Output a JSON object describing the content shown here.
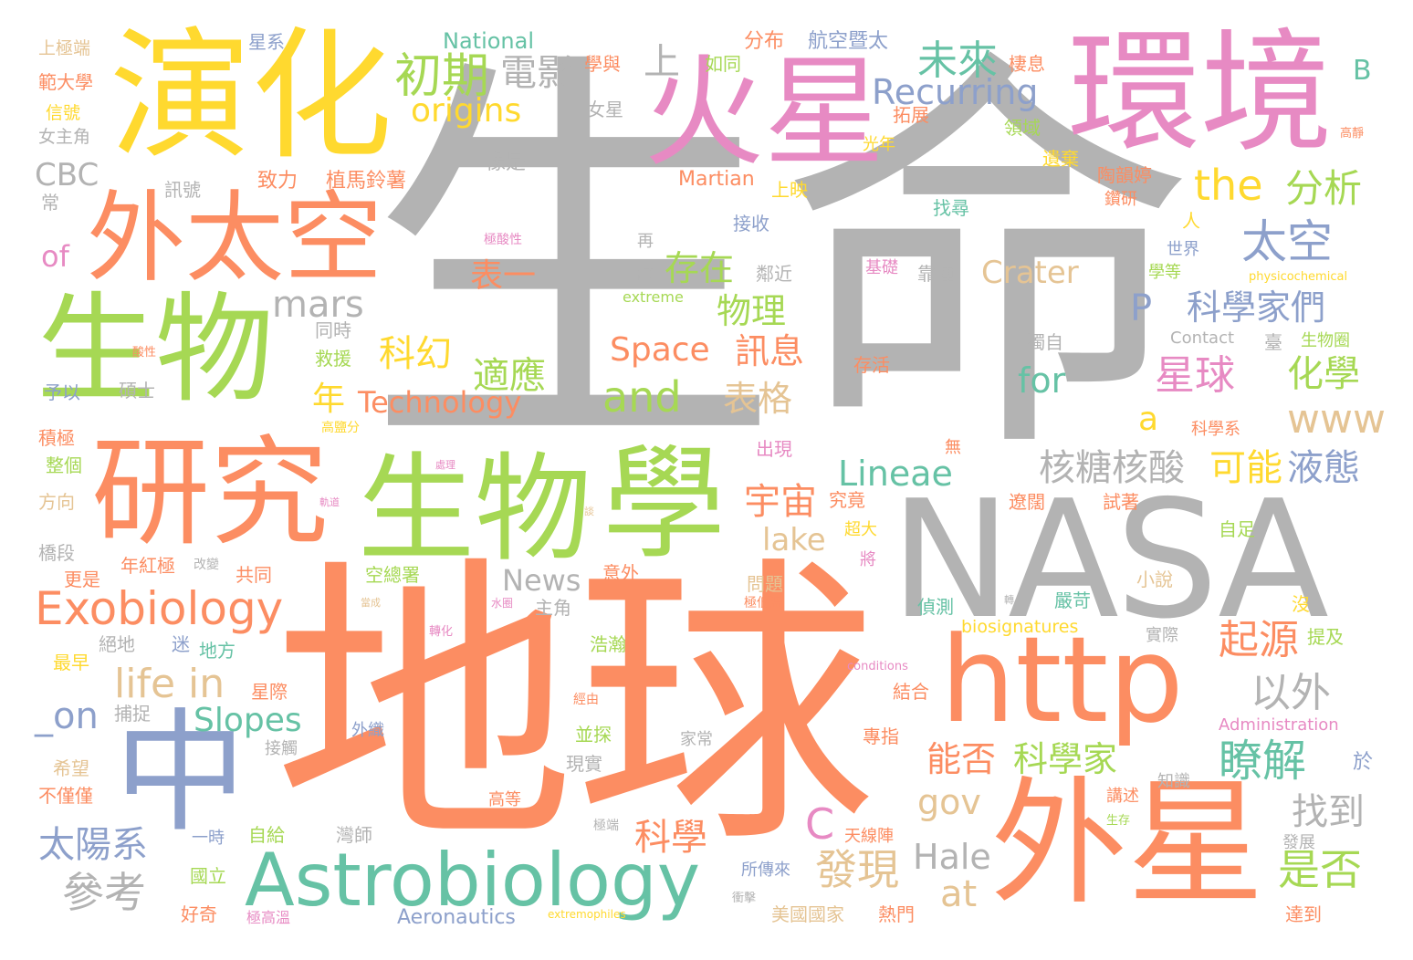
{
  "palette": {
    "gray": "#b3b3b3",
    "orange": "#fc8d62",
    "green": "#a6d854",
    "teal": "#66c2a5",
    "blue": "#8da0cb",
    "pink": "#e78ac3",
    "yellow": "#ffd92f",
    "tan": "#e5c494"
  },
  "words": [
    {
      "text": "生命",
      "color": "gray"
    },
    {
      "text": "地球",
      "color": "orange"
    },
    {
      "text": "NASA",
      "color": "gray"
    },
    {
      "text": "演化",
      "color": "yellow"
    },
    {
      "text": "火星",
      "color": "pink"
    },
    {
      "text": "環境",
      "color": "pink"
    },
    {
      "text": "外太空",
      "color": "orange"
    },
    {
      "text": "生物",
      "color": "green"
    },
    {
      "text": "研究",
      "color": "orange"
    },
    {
      "text": "生物",
      "color": "green"
    },
    {
      "text": "學",
      "color": "green"
    },
    {
      "text": "中",
      "color": "blue"
    },
    {
      "text": "http",
      "color": "orange"
    },
    {
      "text": "外星",
      "color": "orange"
    },
    {
      "text": "Astrobiology",
      "color": "teal"
    },
    {
      "text": "Exobiology",
      "color": "orange"
    },
    {
      "text": "life in",
      "color": "tan"
    },
    {
      "text": "初期",
      "color": "green"
    },
    {
      "text": "電影",
      "color": "gray"
    },
    {
      "text": "上",
      "color": "gray"
    },
    {
      "text": "origins",
      "color": "yellow"
    },
    {
      "text": "未來",
      "color": "teal"
    },
    {
      "text": "Recurring",
      "color": "blue"
    },
    {
      "text": "the",
      "color": "yellow"
    },
    {
      "text": "分析",
      "color": "green"
    },
    {
      "text": "太空",
      "color": "blue"
    },
    {
      "text": "mars",
      "color": "gray"
    },
    {
      "text": "存在",
      "color": "green"
    },
    {
      "text": "Crater",
      "color": "tan"
    },
    {
      "text": "表一",
      "color": "orange"
    },
    {
      "text": "物理",
      "color": "green"
    },
    {
      "text": "P",
      "color": "blue"
    },
    {
      "text": "科學家們",
      "color": "blue"
    },
    {
      "text": "科幻",
      "color": "yellow"
    },
    {
      "text": "Space",
      "color": "orange"
    },
    {
      "text": "訊息",
      "color": "orange"
    },
    {
      "text": "適應",
      "color": "green"
    },
    {
      "text": "and",
      "color": "green"
    },
    {
      "text": "星球",
      "color": "pink"
    },
    {
      "text": "化學",
      "color": "green"
    },
    {
      "text": "for",
      "color": "teal"
    },
    {
      "text": "年",
      "color": "yellow"
    },
    {
      "text": "Technology",
      "color": "orange"
    },
    {
      "text": "表格",
      "color": "tan"
    },
    {
      "text": "www",
      "color": "tan"
    },
    {
      "text": "a",
      "color": "yellow"
    },
    {
      "text": "Lineae",
      "color": "teal"
    },
    {
      "text": "核糖核酸",
      "color": "gray"
    },
    {
      "text": "可能",
      "color": "yellow"
    },
    {
      "text": "液態",
      "color": "blue"
    },
    {
      "text": "宇宙",
      "color": "orange"
    },
    {
      "text": "lake",
      "color": "tan"
    },
    {
      "text": "News",
      "color": "gray"
    },
    {
      "text": "起源",
      "color": "orange"
    },
    {
      "text": "以外",
      "color": "gray"
    },
    {
      "text": "_on",
      "color": "blue"
    },
    {
      "text": "Slopes",
      "color": "teal"
    },
    {
      "text": "能否",
      "color": "orange"
    },
    {
      "text": "科學家",
      "color": "green"
    },
    {
      "text": "瞭解",
      "color": "teal"
    },
    {
      "text": "gov",
      "color": "tan"
    },
    {
      "text": "C",
      "color": "pink"
    },
    {
      "text": "找到",
      "color": "gray"
    },
    {
      "text": "科學",
      "color": "orange"
    },
    {
      "text": "太陽系",
      "color": "blue"
    },
    {
      "text": "參考",
      "color": "gray"
    },
    {
      "text": "發現",
      "color": "tan"
    },
    {
      "text": "Hale",
      "color": "gray"
    },
    {
      "text": "at",
      "color": "tan"
    },
    {
      "text": "是否",
      "color": "green"
    },
    {
      "text": "CBC",
      "color": "gray"
    },
    {
      "text": "of",
      "color": "pink"
    },
    {
      "text": "National",
      "color": "teal"
    },
    {
      "text": "B",
      "color": "teal"
    },
    {
      "text": "Martian",
      "color": "orange"
    },
    {
      "text": "Aeronautics",
      "color": "blue"
    },
    {
      "text": "extremophiles",
      "color": "yellow"
    },
    {
      "text": "Administration",
      "color": "pink"
    },
    {
      "text": "biosignatures",
      "color": "yellow"
    },
    {
      "text": "Contact",
      "color": "gray"
    },
    {
      "text": "conditions",
      "color": "pink"
    },
    {
      "text": "physicochemical",
      "color": "yellow"
    },
    {
      "text": "extreme",
      "color": "green"
    },
    {
      "text": "星系",
      "color": "blue"
    },
    {
      "text": "上極端",
      "color": "tan"
    },
    {
      "text": "範大學",
      "color": "orange"
    },
    {
      "text": "信號",
      "color": "yellow"
    },
    {
      "text": "女主角",
      "color": "gray"
    },
    {
      "text": "訊號",
      "color": "gray"
    },
    {
      "text": "常",
      "color": "gray"
    },
    {
      "text": "致力",
      "color": "orange"
    },
    {
      "text": "植馬鈴薯",
      "color": "orange"
    },
    {
      "text": "分布",
      "color": "orange"
    },
    {
      "text": "航空暨太",
      "color": "blue"
    },
    {
      "text": "學與",
      "color": "orange"
    },
    {
      "text": "如同",
      "color": "green"
    },
    {
      "text": "棲息",
      "color": "orange"
    },
    {
      "text": "女星",
      "color": "gray"
    },
    {
      "text": "像是",
      "color": "gray"
    },
    {
      "text": "拓展",
      "color": "orange"
    },
    {
      "text": "領域",
      "color": "green"
    },
    {
      "text": "光年",
      "color": "yellow"
    },
    {
      "text": "高靜",
      "color": "orange"
    },
    {
      "text": "遺棄",
      "color": "yellow"
    },
    {
      "text": "陶韻婷",
      "color": "orange"
    },
    {
      "text": "鑽研",
      "color": "orange"
    },
    {
      "text": "上映",
      "color": "yellow"
    },
    {
      "text": "找尋",
      "color": "teal"
    },
    {
      "text": "接收",
      "color": "blue"
    },
    {
      "text": "人",
      "color": "yellow"
    },
    {
      "text": "世界",
      "color": "blue"
    },
    {
      "text": "極酸性",
      "color": "pink"
    },
    {
      "text": "再",
      "color": "gray"
    },
    {
      "text": "討",
      "color": "gray"
    },
    {
      "text": "鄰近",
      "color": "gray"
    },
    {
      "text": "基礎",
      "color": "pink"
    },
    {
      "text": "靠種",
      "color": "gray"
    },
    {
      "text": "學等",
      "color": "green"
    },
    {
      "text": "同時",
      "color": "gray"
    },
    {
      "text": "救援",
      "color": "green"
    },
    {
      "text": "碩士",
      "color": "gray"
    },
    {
      "text": "予以",
      "color": "blue"
    },
    {
      "text": "獨自",
      "color": "gray"
    },
    {
      "text": "存活",
      "color": "orange"
    },
    {
      "text": "臺",
      "color": "gray"
    },
    {
      "text": "生物圈",
      "color": "green"
    },
    {
      "text": "科學系",
      "color": "orange"
    },
    {
      "text": "高鹽分",
      "color": "yellow"
    },
    {
      "text": "積極",
      "color": "orange"
    },
    {
      "text": "整個",
      "color": "green"
    },
    {
      "text": "方向",
      "color": "tan"
    },
    {
      "text": "出現",
      "color": "pink"
    },
    {
      "text": "無",
      "color": "orange"
    },
    {
      "text": "遼闊",
      "color": "orange"
    },
    {
      "text": "試著",
      "color": "orange"
    },
    {
      "text": "究竟",
      "color": "orange"
    },
    {
      "text": "自足",
      "color": "green"
    },
    {
      "text": "超大",
      "color": "yellow"
    },
    {
      "text": "橋段",
      "color": "gray"
    },
    {
      "text": "年紅極",
      "color": "orange"
    },
    {
      "text": "改變",
      "color": "gray"
    },
    {
      "text": "將",
      "color": "pink"
    },
    {
      "text": "更是",
      "color": "orange"
    },
    {
      "text": "共同",
      "color": "orange"
    },
    {
      "text": "空總署",
      "color": "green"
    },
    {
      "text": "意外",
      "color": "orange"
    },
    {
      "text": "問題",
      "color": "tan"
    },
    {
      "text": "極低溫",
      "color": "orange"
    },
    {
      "text": "小說",
      "color": "tan"
    },
    {
      "text": "嚴苛",
      "color": "teal"
    },
    {
      "text": "偵測",
      "color": "teal"
    },
    {
      "text": "沒",
      "color": "yellow"
    },
    {
      "text": "主角",
      "color": "gray"
    },
    {
      "text": "絕地",
      "color": "gray"
    },
    {
      "text": "迷",
      "color": "blue"
    },
    {
      "text": "地方",
      "color": "teal"
    },
    {
      "text": "最早",
      "color": "yellow"
    },
    {
      "text": "浩瀚",
      "color": "green"
    },
    {
      "text": "實際",
      "color": "gray"
    },
    {
      "text": "提及",
      "color": "green"
    },
    {
      "text": "星際",
      "color": "orange"
    },
    {
      "text": "捕捉",
      "color": "gray"
    },
    {
      "text": "結合",
      "color": "orange"
    },
    {
      "text": "外織",
      "color": "blue"
    },
    {
      "text": "接觸",
      "color": "gray"
    },
    {
      "text": "專指",
      "color": "orange"
    },
    {
      "text": "家常",
      "color": "gray"
    },
    {
      "text": "並探",
      "color": "green"
    },
    {
      "text": "現實",
      "color": "gray"
    },
    {
      "text": "於",
      "color": "blue"
    },
    {
      "text": "知識",
      "color": "gray"
    },
    {
      "text": "講述",
      "color": "orange"
    },
    {
      "text": "希望",
      "color": "tan"
    },
    {
      "text": "不僅僅",
      "color": "orange"
    },
    {
      "text": "高等",
      "color": "orange"
    },
    {
      "text": "生存",
      "color": "green"
    },
    {
      "text": "發展",
      "color": "gray"
    },
    {
      "text": "一時",
      "color": "blue"
    },
    {
      "text": "自給",
      "color": "green"
    },
    {
      "text": "灣師",
      "color": "gray"
    },
    {
      "text": "天線陣",
      "color": "orange"
    },
    {
      "text": "國立",
      "color": "green"
    },
    {
      "text": "所傳來",
      "color": "blue"
    },
    {
      "text": "好奇",
      "color": "orange"
    },
    {
      "text": "極高溫",
      "color": "pink"
    },
    {
      "text": "美國國家",
      "color": "tan"
    },
    {
      "text": "熱門",
      "color": "orange"
    },
    {
      "text": "達到",
      "color": "orange"
    },
    {
      "text": "水圈",
      "color": "pink"
    },
    {
      "text": "轉化",
      "color": "pink"
    },
    {
      "text": "經由",
      "color": "orange"
    },
    {
      "text": "衝擊",
      "color": "gray"
    },
    {
      "text": "極端",
      "color": "gray"
    },
    {
      "text": "酸性",
      "color": "orange"
    },
    {
      "text": "處理",
      "color": "pink"
    },
    {
      "text": "軌道",
      "color": "pink"
    },
    {
      "text": "談",
      "color": "tan"
    },
    {
      "text": "當成",
      "color": "tan"
    },
    {
      "text": "轉",
      "color": "gray"
    }
  ]
}
